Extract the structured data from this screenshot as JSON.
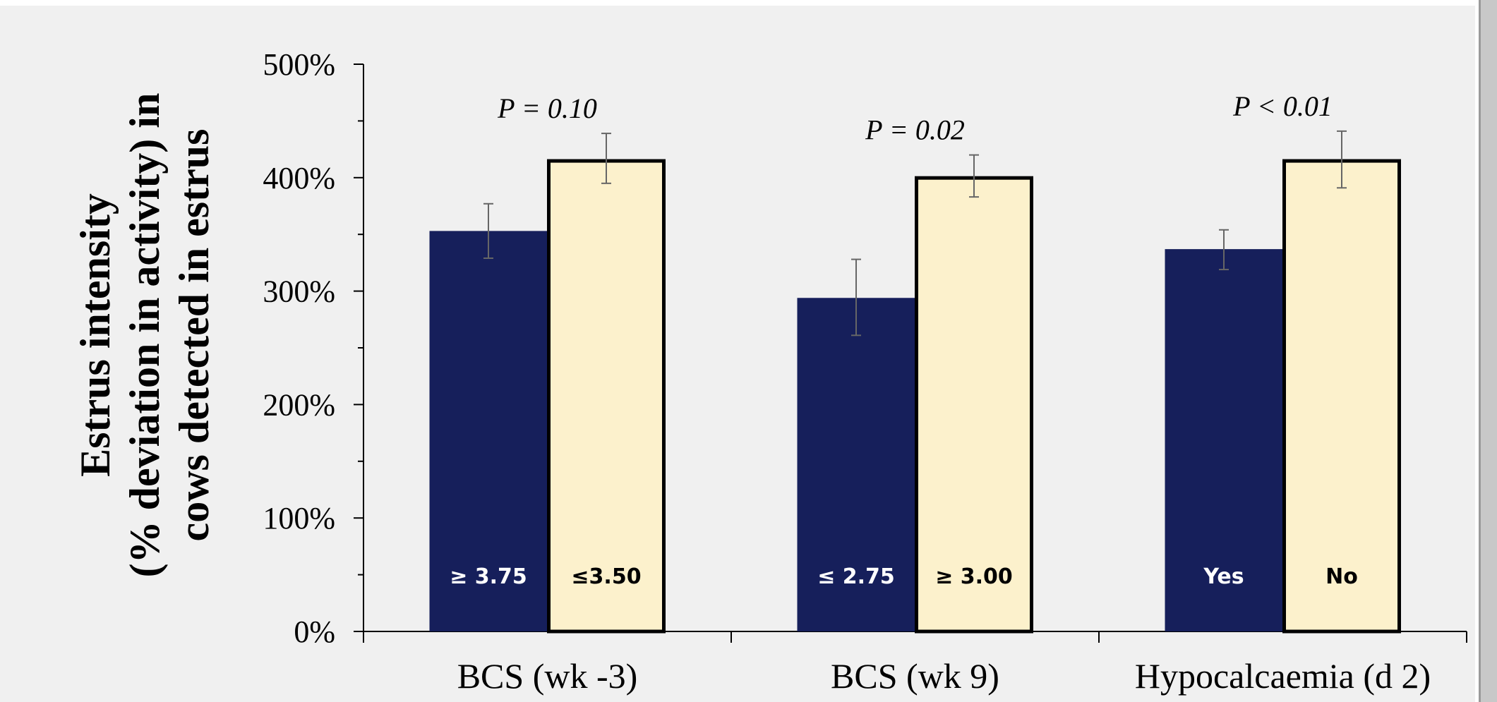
{
  "chart_data": {
    "type": "bar",
    "title": "",
    "ylabel_lines": [
      "Estrus intensity",
      "(% deviation in activity) in",
      "cows detected in estrus"
    ],
    "xlabel": "",
    "categories": [
      "BCS (wk -3)",
      "BCS (wk 9)",
      "Hypocalcaemia (d 2)"
    ],
    "ylim": [
      0,
      500
    ],
    "y_ticks": [
      0,
      100,
      200,
      300,
      400,
      500
    ],
    "y_tick_labels": [
      "0%",
      "100%",
      "200%",
      "300%",
      "400%",
      "500%"
    ],
    "series_colors": [
      "#161f5b",
      "#fcf1cc"
    ],
    "groups": [
      {
        "p_value": "P = 0.10",
        "bars": [
          {
            "label": "≥ 3.75",
            "value": 353,
            "err_low": 329,
            "err_high": 377
          },
          {
            "label": "≤3.50",
            "value": 416,
            "err_low": 395,
            "err_high": 439
          }
        ]
      },
      {
        "p_value": "P = 0.02",
        "bars": [
          {
            "label": "≤ 2.75",
            "value": 294,
            "err_low": 261,
            "err_high": 328
          },
          {
            "label": "≥ 3.00",
            "value": 401,
            "err_low": 383,
            "err_high": 420
          }
        ]
      },
      {
        "p_value": "P < 0.01",
        "bars": [
          {
            "label": "Yes",
            "value": 337,
            "err_low": 319,
            "err_high": 354
          },
          {
            "label": "No",
            "value": 416,
            "err_low": 391,
            "err_high": 441
          }
        ]
      }
    ],
    "grid": false,
    "legend": "none"
  }
}
